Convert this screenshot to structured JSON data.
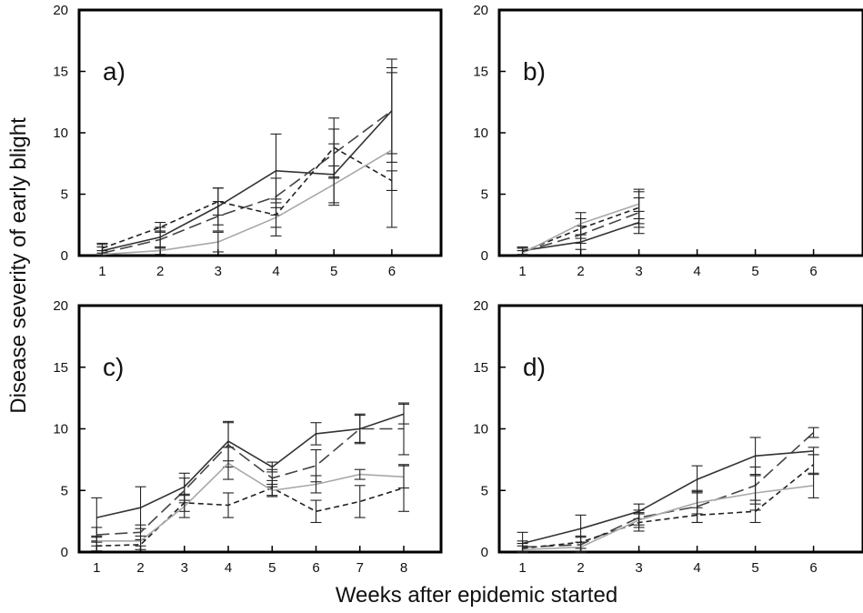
{
  "figure": {
    "ylabel": "Disease severity of early blight",
    "xlabel": "Weeks after epidemic started"
  },
  "chart_data": [
    {
      "type": "line",
      "panel": "a)",
      "x": [
        1,
        2,
        3,
        4,
        5,
        6
      ],
      "xlim": [
        0.6,
        6.85
      ],
      "ylim": [
        0,
        20
      ],
      "yticks": [
        0,
        5,
        10,
        15,
        20
      ],
      "xticks": [
        1,
        2,
        3,
        4,
        5,
        6
      ],
      "series": [
        {
          "style": "solid-dark",
          "values": [
            0.4,
            1.5,
            4.0,
            6.9,
            6.6,
            11.8
          ],
          "err": [
            0.5,
            0.8,
            1.5,
            3.0,
            2.5,
            3.5
          ]
        },
        {
          "style": "longdash-dark",
          "values": [
            0.2,
            1.3,
            3.2,
            4.8,
            8.3,
            11.8
          ],
          "err": [
            0.5,
            0.7,
            1.2,
            1.5,
            2.0,
            4.2
          ]
        },
        {
          "style": "shortdash-dark",
          "values": [
            0.6,
            2.3,
            4.4,
            3.3,
            8.8,
            6.1
          ],
          "err": [
            0.4,
            0.4,
            1.1,
            1.0,
            2.4,
            0.8
          ]
        },
        {
          "style": "solid-gray",
          "values": [
            0.1,
            0.4,
            1.1,
            3.1,
            5.8,
            8.6
          ],
          "err": [
            0.3,
            0.3,
            0.8,
            1.5,
            1.5,
            6.3
          ]
        }
      ]
    },
    {
      "type": "line",
      "panel": "b)",
      "x": [
        1,
        2,
        3
      ],
      "xlim": [
        0.6,
        6.85
      ],
      "ylim": [
        0,
        20
      ],
      "yticks": [
        0,
        5,
        10,
        15,
        20
      ],
      "xticks": [
        1,
        2,
        3,
        4,
        5,
        6
      ],
      "series": [
        {
          "style": "solid-dark",
          "values": [
            0.4,
            1.1,
            2.7
          ],
          "err": [
            0.3,
            0.6,
            0.9
          ]
        },
        {
          "style": "longdash-dark",
          "values": [
            0.3,
            1.7,
            3.5
          ],
          "err": [
            0.3,
            0.7,
            1.2
          ]
        },
        {
          "style": "shortdash-dark",
          "values": [
            0.3,
            2.2,
            3.9
          ],
          "err": [
            0.3,
            0.8,
            1.3
          ]
        },
        {
          "style": "solid-gray",
          "values": [
            0.2,
            2.6,
            4.2
          ],
          "err": [
            0.2,
            0.9,
            1.2
          ]
        }
      ]
    },
    {
      "type": "line",
      "panel": "c)",
      "x": [
        1,
        2,
        3,
        4,
        5,
        6,
        7,
        8
      ],
      "xlim": [
        0.6,
        8.85
      ],
      "ylim": [
        0,
        20
      ],
      "yticks": [
        0,
        5,
        10,
        15,
        20
      ],
      "xticks": [
        1,
        2,
        3,
        4,
        5,
        6,
        7,
        8
      ],
      "series": [
        {
          "style": "solid-dark",
          "values": [
            2.8,
            3.6,
            5.3,
            9.0,
            6.9,
            9.6,
            10.0,
            11.2
          ],
          "err": [
            1.6,
            1.7,
            1.1,
            1.6,
            0.4,
            0.9,
            1.1,
            0.8
          ]
        },
        {
          "style": "longdash-dark",
          "values": [
            1.4,
            1.6,
            5.0,
            8.7,
            6.0,
            7.0,
            10.0,
            10.0
          ],
          "err": [
            0.6,
            0.6,
            1.0,
            1.8,
            0.7,
            1.3,
            1.2,
            2.1
          ]
        },
        {
          "style": "shortdash-dark",
          "values": [
            0.5,
            0.6,
            4.0,
            3.8,
            5.2,
            3.3,
            4.1,
            5.2
          ],
          "err": [
            0.4,
            0.4,
            0.7,
            1.0,
            0.6,
            0.9,
            1.3,
            1.9
          ]
        },
        {
          "style": "solid-gray",
          "values": [
            0.9,
            0.9,
            3.7,
            7.2,
            5.0,
            5.5,
            6.3,
            6.1
          ],
          "err": [
            0.4,
            0.4,
            0.9,
            1.3,
            0.5,
            0.7,
            0.4,
            0.9
          ]
        }
      ]
    },
    {
      "type": "line",
      "panel": "d)",
      "x": [
        1,
        2,
        3,
        4,
        5,
        6
      ],
      "xlim": [
        0.6,
        6.85
      ],
      "ylim": [
        0,
        20
      ],
      "yticks": [
        0,
        5,
        10,
        15,
        20
      ],
      "xticks": [
        1,
        2,
        3,
        4,
        5,
        6
      ],
      "series": [
        {
          "style": "solid-dark",
          "values": [
            0.7,
            1.9,
            3.3,
            5.9,
            7.8,
            8.2
          ],
          "err": [
            0.9,
            1.1,
            0.6,
            1.1,
            1.5,
            0.3
          ]
        },
        {
          "style": "longdash-dark",
          "values": [
            0.4,
            0.6,
            2.8,
            3.7,
            5.4,
            9.7
          ],
          "err": [
            0.5,
            0.6,
            0.6,
            1.3,
            1.5,
            0.4
          ]
        },
        {
          "style": "shortdash-dark",
          "values": [
            0.3,
            0.8,
            2.4,
            3.0,
            3.3,
            7.1
          ],
          "err": [
            0.4,
            0.5,
            0.7,
            0.6,
            0.9,
            0.8
          ]
        },
        {
          "style": "solid-gray",
          "values": [
            0.2,
            0.4,
            2.6,
            4.0,
            4.8,
            5.4
          ],
          "err": [
            0.3,
            0.4,
            0.6,
            0.9,
            1.4,
            1.0
          ]
        }
      ]
    }
  ]
}
